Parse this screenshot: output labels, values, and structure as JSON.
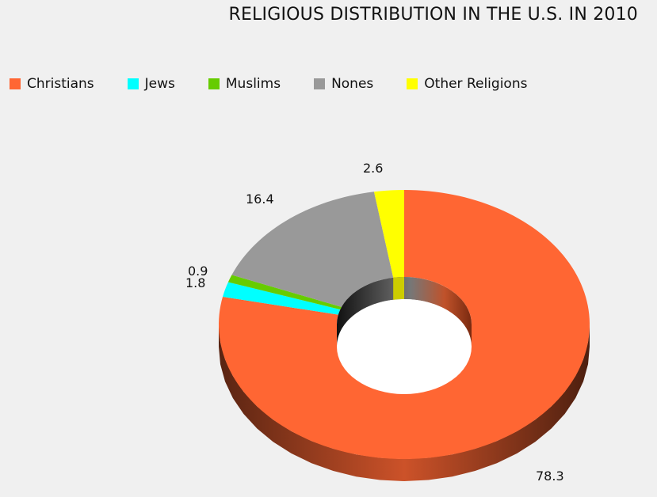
{
  "chart_data": {
    "type": "pie",
    "title": "RELIGIOUS DISTRIBUTION IN THE U.S. IN 2010",
    "categories": [
      "Christians",
      "Jews",
      "Muslims",
      "Nones",
      "Other Religions"
    ],
    "values": [
      78.3,
      1.8,
      0.9,
      16.4,
      2.6
    ],
    "colors": [
      "#ff6633",
      "#00ffff",
      "#66cc00",
      "#999999",
      "#ffff00"
    ],
    "legend_position": "top-left",
    "style": "3d-donut"
  }
}
